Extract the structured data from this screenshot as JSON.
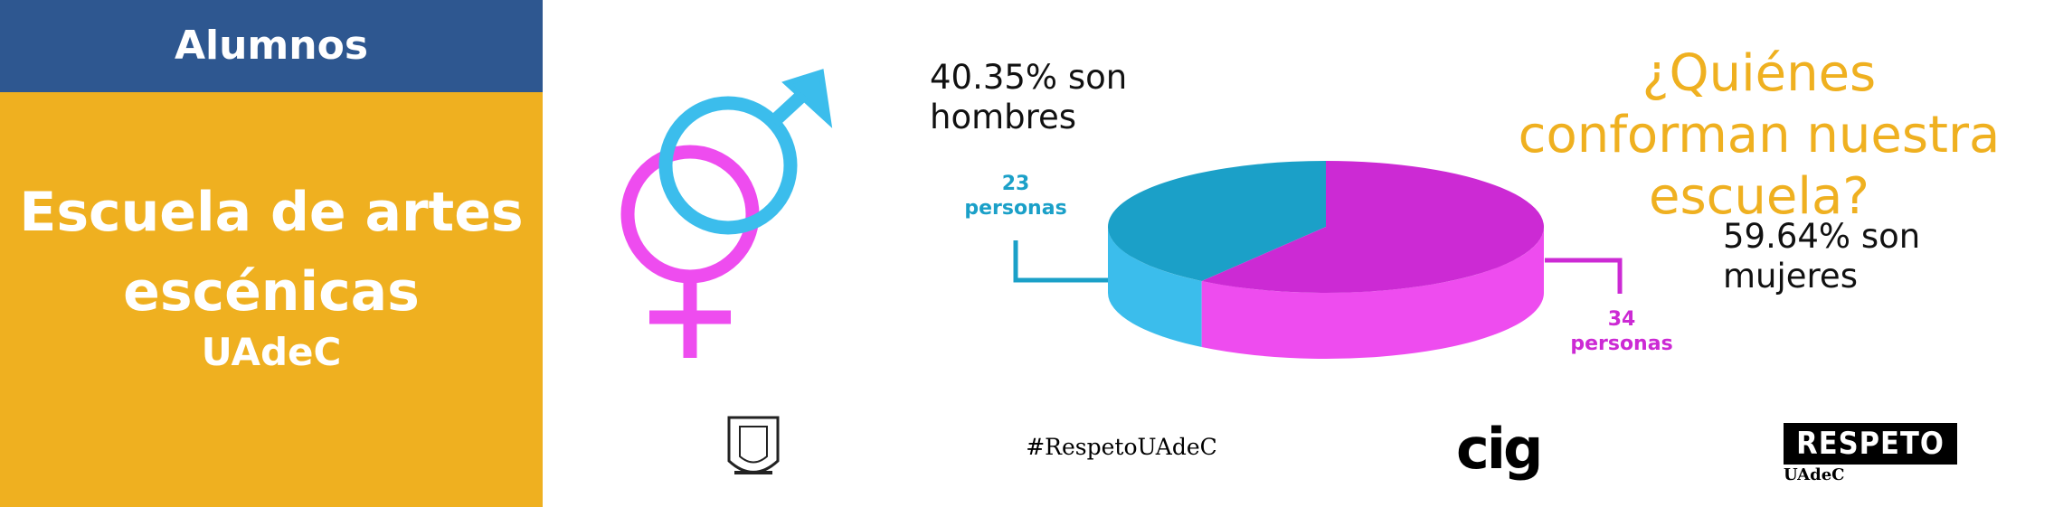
{
  "sidebar": {
    "header": "Alumnos",
    "school_lines": [
      "Escuela de artes",
      "escénicas"
    ],
    "university": "UAdeC"
  },
  "chart_data": {
    "type": "pie3d",
    "title": "¿Quiénes conforman nuestra escuela?",
    "categories": [
      "40.35% son hombres",
      "59.64% son mujeres"
    ],
    "values": [
      23,
      34
    ],
    "value_labels": [
      [
        "23",
        "personas"
      ],
      [
        "34",
        "personas"
      ]
    ],
    "colors": [
      "#1ba0c8",
      "#cc2ad4"
    ],
    "side_colors": [
      "#3bbdec",
      "#ee4cef"
    ]
  },
  "footer": {
    "hashtag": "#RespetoUAdeC",
    "cig": "cig",
    "respeto": "RESPETO",
    "respeto_sub": "UAdeC"
  }
}
